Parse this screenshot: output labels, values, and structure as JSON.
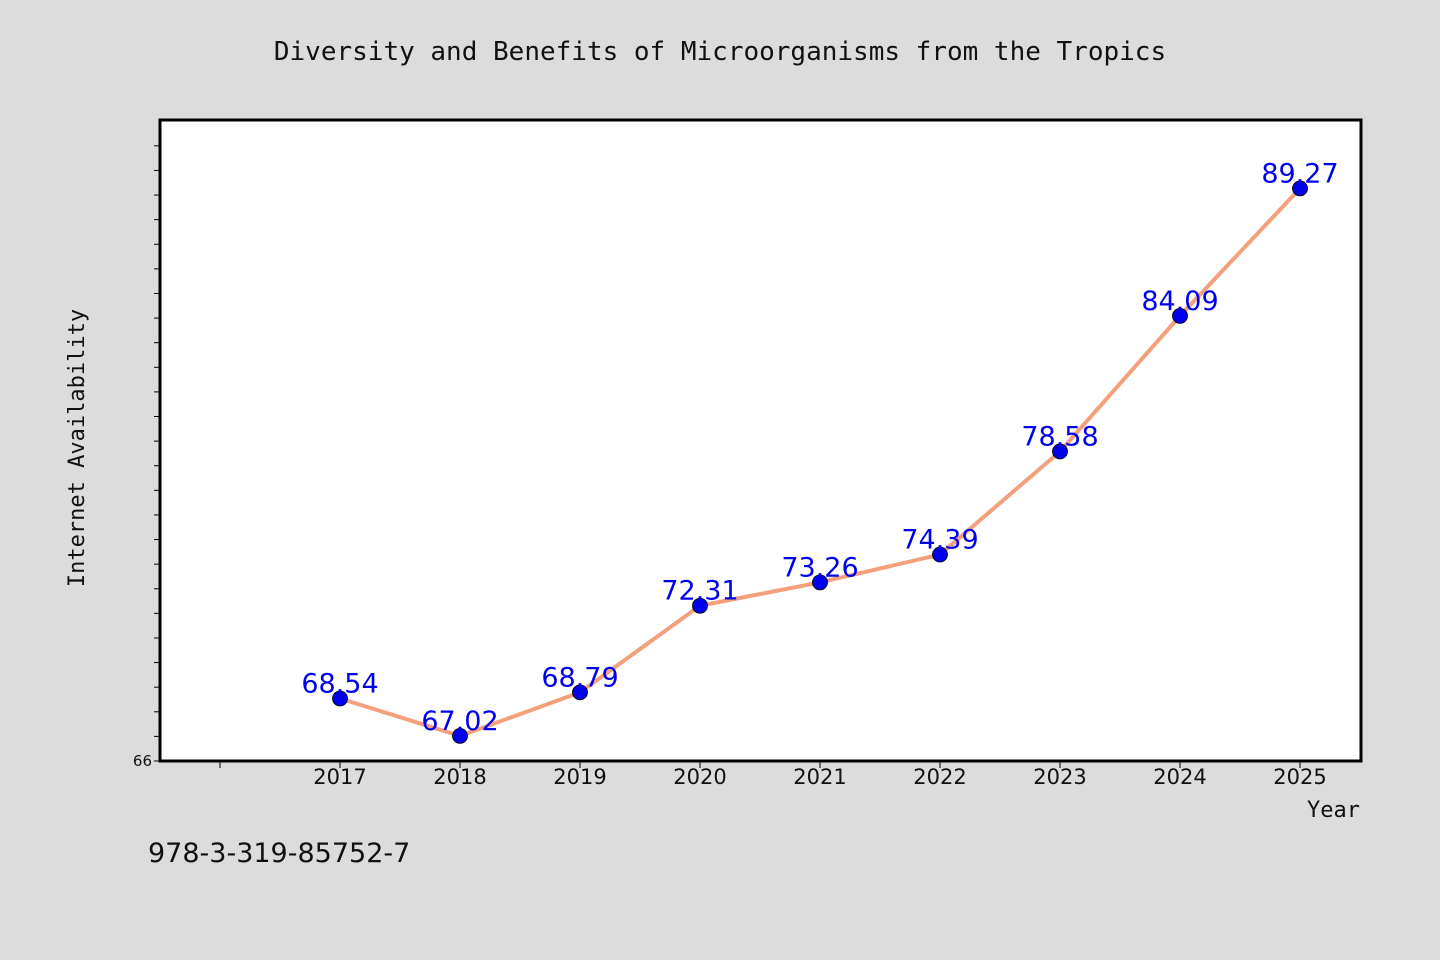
{
  "chart_data": {
    "type": "line",
    "title": "Diversity and Benefits of Microorganisms from the Tropics",
    "xlabel": "Year",
    "ylabel": "Internet Availability",
    "categories": [
      "2017",
      "2018",
      "2019",
      "2020",
      "2021",
      "2022",
      "2023",
      "2024",
      "2025"
    ],
    "series": [
      {
        "values": [
          68.54,
          67.02,
          68.79,
          72.31,
          73.26,
          74.39,
          78.58,
          84.09,
          89.27
        ]
      }
    ],
    "ylim": [
      66,
      92.05
    ],
    "y_tick_labels": [
      "66"
    ],
    "data_labels": [
      "68.54",
      "67.02",
      "68.79",
      "72.31",
      "73.26",
      "74.39",
      "78.58",
      "84.09",
      "89.27"
    ],
    "grid": false,
    "legend": "none",
    "line_color": "#f4a07c",
    "marker_color": "#0000ee",
    "label_color": "#0000ee",
    "background": "#dcdcdc",
    "plot_background": "#ffffff"
  },
  "footer": {
    "isbn": "978-3-319-85752-7"
  }
}
